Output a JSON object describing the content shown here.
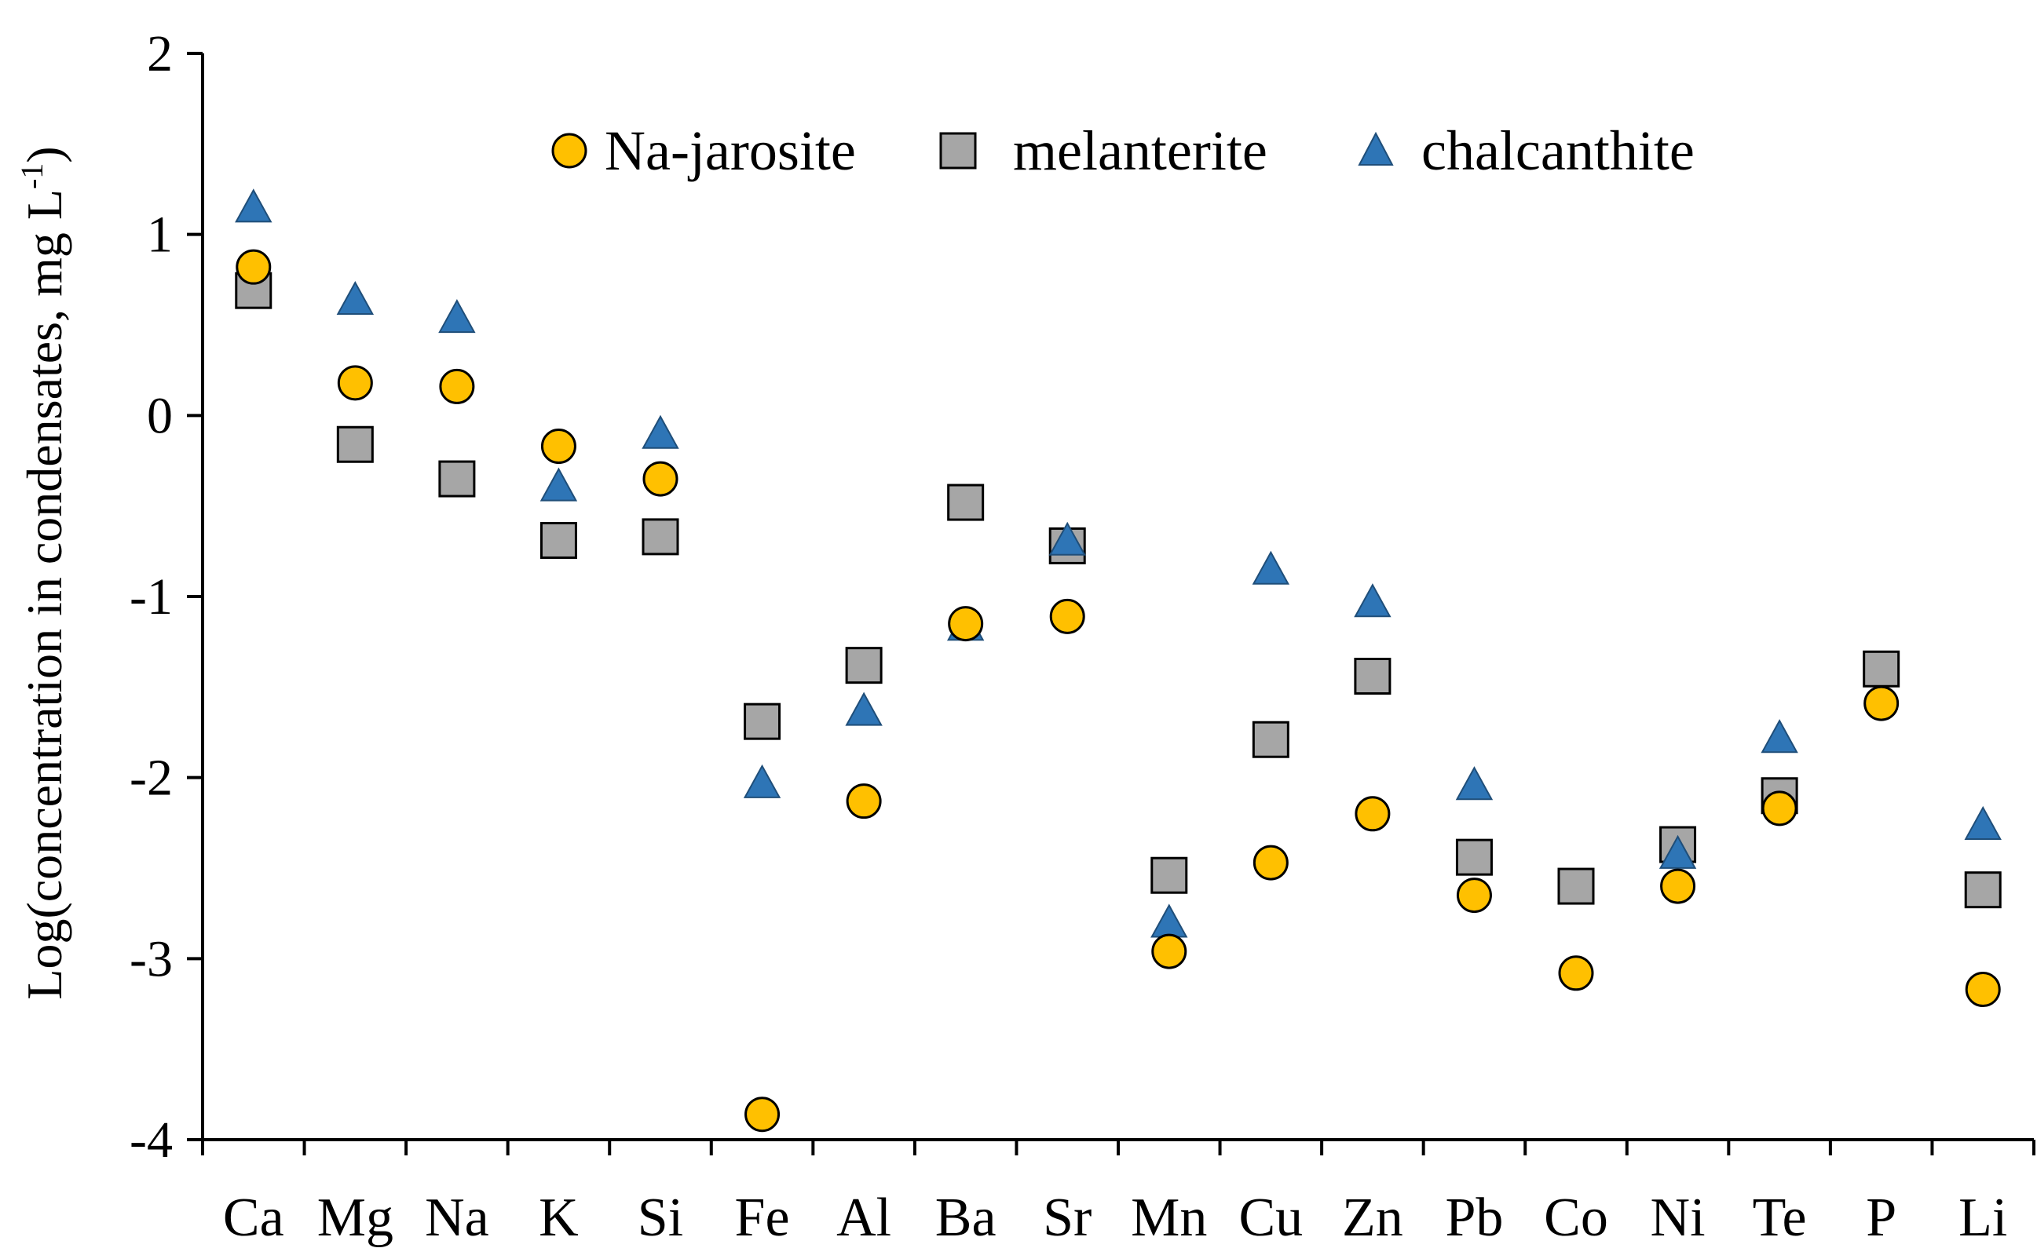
{
  "chart_data": {
    "type": "scatter",
    "title": "",
    "xlabel": "",
    "ylabel_main": "Log(concentration in condensates,  mg L",
    "ylabel_sup": "-1",
    "ylabel_end": ")",
    "ylim": [
      -4,
      2
    ],
    "yticks": [
      2,
      1,
      0,
      -1,
      -2,
      -3,
      -4
    ],
    "ytick_labels": [
      "2",
      "1",
      "0",
      "-1",
      "-2",
      "-3",
      "-4"
    ],
    "categories": [
      "Ca",
      "Mg",
      "Na",
      "K",
      "Si",
      "Fe",
      "Al",
      "Ba",
      "Sr",
      "Mn",
      "Cu",
      "Zn",
      "Pb",
      "Co",
      "Ni",
      "Te",
      "P",
      "Li"
    ],
    "legend_position": "top",
    "series": [
      {
        "name": "Na-jarosite",
        "marker": "circle",
        "color": "#FFC000",
        "values": [
          0.82,
          0.18,
          0.16,
          -0.17,
          -0.35,
          -3.86,
          -2.13,
          -1.15,
          -1.11,
          -2.96,
          -2.47,
          -2.2,
          -2.65,
          -3.08,
          -2.6,
          -2.17,
          -1.59,
          -3.17
        ]
      },
      {
        "name": "melanterite",
        "marker": "square",
        "color": "#A6A6A6",
        "values": [
          0.69,
          -0.16,
          -0.35,
          -0.69,
          -0.67,
          -1.69,
          -1.38,
          -0.48,
          -0.72,
          -2.54,
          -1.79,
          -1.44,
          -2.44,
          -2.6,
          -2.37,
          -2.1,
          -1.4,
          -2.62
        ]
      },
      {
        "name": "chalcanthite",
        "marker": "triangle",
        "color": "#2E75B6",
        "values": [
          1.14,
          0.63,
          0.53,
          -0.4,
          -0.11,
          -2.04,
          -1.64,
          -1.17,
          -0.7,
          -2.81,
          -0.86,
          -1.04,
          -2.05,
          null,
          -2.43,
          -1.79,
          null,
          -2.27
        ]
      }
    ]
  }
}
